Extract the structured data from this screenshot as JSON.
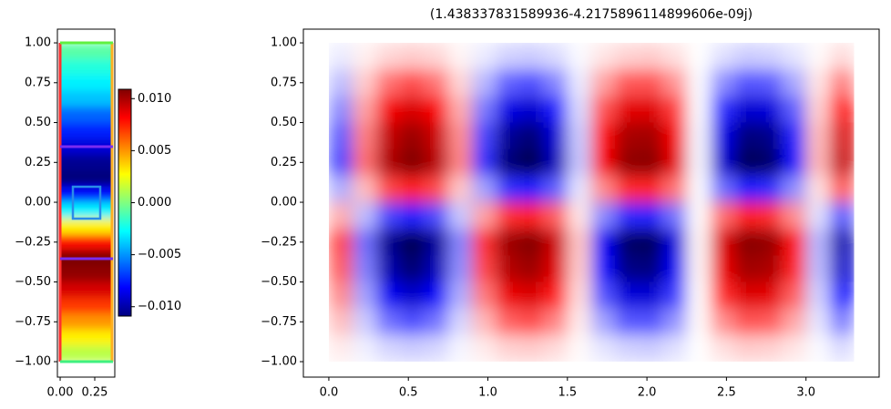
{
  "chart_data": [
    {
      "type": "heatmap",
      "colormap": "jet",
      "xlim": [
        -0.02,
        0.395
      ],
      "ylim": [
        -1.097,
        1.086
      ],
      "xticks": [
        {
          "value": 0,
          "label": "0.00"
        },
        0.25
      ],
      "yticks": [
        {
          "value": 1,
          "label": "1.00"
        },
        0.75,
        {
          "value": 0.5,
          "label": "0.50"
        },
        0.25,
        {
          "value": 0,
          "label": "0.00"
        },
        {
          "value": -0.25,
          "label": "−0.25"
        },
        {
          "value": -0.5,
          "label": "−0.50"
        },
        {
          "value": -0.75,
          "label": "−0.75"
        },
        {
          "value": -1,
          "label": "−1.00"
        }
      ],
      "xextent": [
        0,
        0.38
      ],
      "y": [
        0.95,
        0.85,
        0.75,
        0.65,
        0.55,
        0.45,
        0.35,
        0.25,
        0.15,
        0.05,
        -0.05,
        -0.15,
        -0.25,
        -0.35,
        -0.45,
        -0.55,
        -0.65,
        -0.75,
        -0.85,
        -0.95
      ],
      "values": [
        -0.0008,
        -0.002,
        -0.003,
        -0.004,
        -0.006,
        -0.0075,
        -0.009,
        -0.0105,
        -0.011,
        -0.008,
        -0.003,
        0.003,
        0.008,
        0.011,
        0.0105,
        0.009,
        0.007,
        0.005,
        0.003,
        0.0012
      ],
      "colorbar": {
        "lim": [
          -0.0109,
          0.0109
        ],
        "ticks": [
          {
            "value": 0.01,
            "label": "0.010"
          },
          {
            "value": 0.005,
            "label": "0.005"
          },
          {
            "value": 0,
            "label": "0.000"
          },
          {
            "value": -0.005,
            "label": "−0.005"
          },
          {
            "value": -0.01,
            "label": "−0.010"
          }
        ]
      }
    },
    {
      "type": "heatmap",
      "colormap": "seismic",
      "title": "(1.438337831589936-4.2175896114899606e-09j)",
      "xlim": [
        -0.16,
        3.46
      ],
      "ylim": [
        -1.097,
        1.086
      ],
      "clim": [
        -1,
        1
      ],
      "xticks": [
        {
          "value": 0,
          "label": "0.0"
        },
        0.5,
        {
          "value": 1,
          "label": "1.0"
        },
        1.5,
        {
          "value": 2,
          "label": "2.0"
        },
        2.5,
        {
          "value": 3,
          "label": "3.0"
        }
      ],
      "yticks": [
        {
          "value": 1,
          "label": "1.00"
        },
        0.75,
        {
          "value": 0.5,
          "label": "0.50"
        },
        0.25,
        {
          "value": 0,
          "label": "0.00"
        },
        {
          "value": -0.25,
          "label": "−0.25"
        },
        {
          "value": -0.5,
          "label": "−0.50"
        },
        {
          "value": -0.75,
          "label": "−0.75"
        },
        {
          "value": -1,
          "label": "−1.00"
        }
      ],
      "x": [
        0.075,
        0.225,
        0.375,
        0.525,
        0.675,
        0.825,
        0.975,
        1.125,
        1.275,
        1.425,
        1.575,
        1.725,
        1.875,
        2.025,
        2.175,
        2.325,
        2.475,
        2.625,
        2.775,
        2.925,
        3.075,
        3.225
      ],
      "y": [
        0.917,
        0.75,
        0.583,
        0.417,
        0.25,
        0.083,
        -0.083,
        -0.25,
        -0.417,
        -0.583,
        -0.75,
        -0.917
      ],
      "values": [
        [
          -0.04,
          0.03,
          0.08,
          0.1,
          0.08,
          0.02,
          -0.04,
          -0.09,
          -0.1,
          -0.07,
          -0.01,
          0.05,
          0.09,
          0.1,
          0.06,
          0,
          -0.06,
          -0.1,
          -0.09,
          -0.05,
          0.01,
          0.07
        ],
        [
          -0.13,
          0.1,
          0.28,
          0.35,
          0.27,
          0.08,
          -0.14,
          -0.31,
          -0.35,
          -0.24,
          -0.04,
          0.18,
          0.33,
          0.34,
          0.21,
          -0.01,
          -0.22,
          -0.34,
          -0.32,
          -0.17,
          0.05,
          0.25
        ],
        [
          -0.23,
          0.18,
          0.53,
          0.65,
          0.51,
          0.16,
          -0.26,
          -0.57,
          -0.64,
          -0.45,
          -0.07,
          0.34,
          0.6,
          0.62,
          0.38,
          -0.01,
          -0.41,
          -0.63,
          -0.6,
          -0.31,
          0.09,
          0.47
        ],
        [
          -0.32,
          0.25,
          0.73,
          0.9,
          0.7,
          0.22,
          -0.36,
          -0.79,
          -0.89,
          -0.62,
          -0.1,
          0.47,
          0.84,
          0.86,
          0.53,
          -0.02,
          -0.57,
          -0.87,
          -0.83,
          -0.43,
          0.13,
          0.65
        ],
        [
          -0.36,
          0.28,
          0.81,
          1,
          0.78,
          0.24,
          -0.4,
          -0.88,
          -0.99,
          -0.69,
          -0.11,
          0.52,
          0.93,
          0.96,
          0.59,
          -0.02,
          -0.63,
          -0.97,
          -0.92,
          -0.48,
          0.14,
          0.72
        ],
        [
          -0.16,
          0.13,
          0.36,
          0.45,
          0.35,
          0.11,
          -0.18,
          -0.4,
          -0.45,
          -0.31,
          -0.05,
          0.23,
          0.42,
          0.43,
          0.27,
          -0.01,
          -0.28,
          -0.44,
          -0.41,
          -0.22,
          0.06,
          0.32
        ],
        [
          0.16,
          -0.13,
          -0.36,
          -0.45,
          -0.35,
          -0.11,
          0.18,
          0.4,
          0.45,
          0.31,
          0.05,
          -0.23,
          -0.42,
          -0.43,
          -0.27,
          0.01,
          0.28,
          0.44,
          0.41,
          0.22,
          -0.06,
          -0.32
        ],
        [
          0.36,
          -0.28,
          -0.81,
          -1,
          -0.78,
          -0.24,
          0.4,
          0.88,
          0.99,
          0.69,
          0.11,
          -0.52,
          -0.93,
          -0.96,
          -0.59,
          0.02,
          0.63,
          0.97,
          0.92,
          0.48,
          -0.14,
          -0.72
        ],
        [
          0.32,
          -0.25,
          -0.73,
          -0.9,
          -0.7,
          -0.22,
          0.36,
          0.79,
          0.89,
          0.62,
          0.1,
          -0.47,
          -0.84,
          -0.86,
          -0.53,
          0.02,
          0.57,
          0.87,
          0.83,
          0.43,
          -0.13,
          -0.65
        ],
        [
          0.23,
          -0.18,
          -0.53,
          -0.65,
          -0.51,
          -0.16,
          0.26,
          0.57,
          0.64,
          0.45,
          0.07,
          -0.34,
          -0.6,
          -0.62,
          -0.38,
          0.01,
          0.41,
          0.63,
          0.6,
          0.31,
          -0.09,
          -0.47
        ],
        [
          0.13,
          -0.1,
          -0.28,
          -0.35,
          -0.27,
          -0.08,
          0.14,
          0.31,
          0.35,
          0.24,
          0.04,
          -0.18,
          -0.33,
          -0.34,
          -0.21,
          0.01,
          0.22,
          0.34,
          0.32,
          0.17,
          -0.05,
          -0.25
        ],
        [
          0.04,
          -0.03,
          -0.08,
          -0.1,
          -0.08,
          -0.02,
          0.04,
          0.09,
          0.1,
          0.07,
          0.01,
          -0.05,
          -0.09,
          -0.1,
          -0.06,
          0,
          0.06,
          0.1,
          0.09,
          0.05,
          -0.01,
          -0.07
        ]
      ]
    }
  ]
}
